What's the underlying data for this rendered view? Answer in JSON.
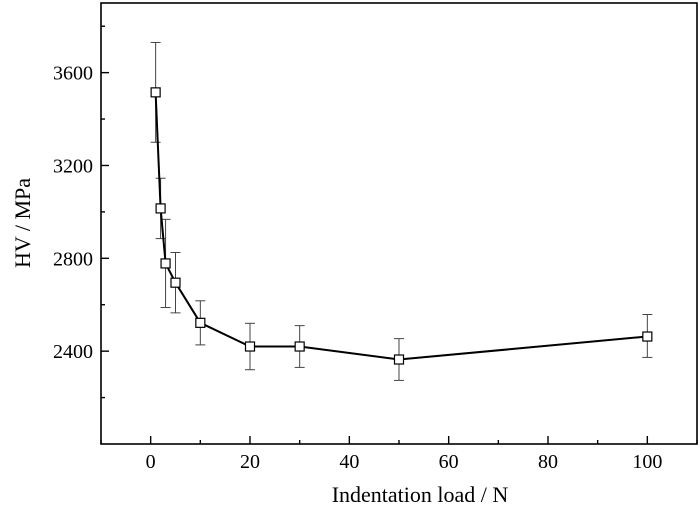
{
  "chart_data": {
    "type": "line",
    "title": "",
    "xlabel": "Indentation load / N",
    "ylabel": "HV / MPa",
    "xlim": [
      -10,
      110
    ],
    "ylim": [
      2000,
      3900
    ],
    "xticks": [
      0,
      20,
      40,
      60,
      80,
      100
    ],
    "yticks": [
      2400,
      2800,
      3200,
      3600
    ],
    "grid": false,
    "legend": "none",
    "marker": "open-square",
    "line_color": "#000000",
    "series": [
      {
        "x": [
          1,
          2,
          3,
          5,
          10,
          20,
          30,
          50,
          100
        ],
        "y": [
          3515,
          3015,
          2778,
          2695,
          2522,
          2420,
          2420,
          2364,
          2463
        ],
        "err_low": [
          215,
          130,
          190,
          130,
          95,
          100,
          90,
          90,
          90
        ],
        "err_high": [
          215,
          130,
          190,
          130,
          95,
          100,
          90,
          90,
          95
        ]
      }
    ]
  }
}
